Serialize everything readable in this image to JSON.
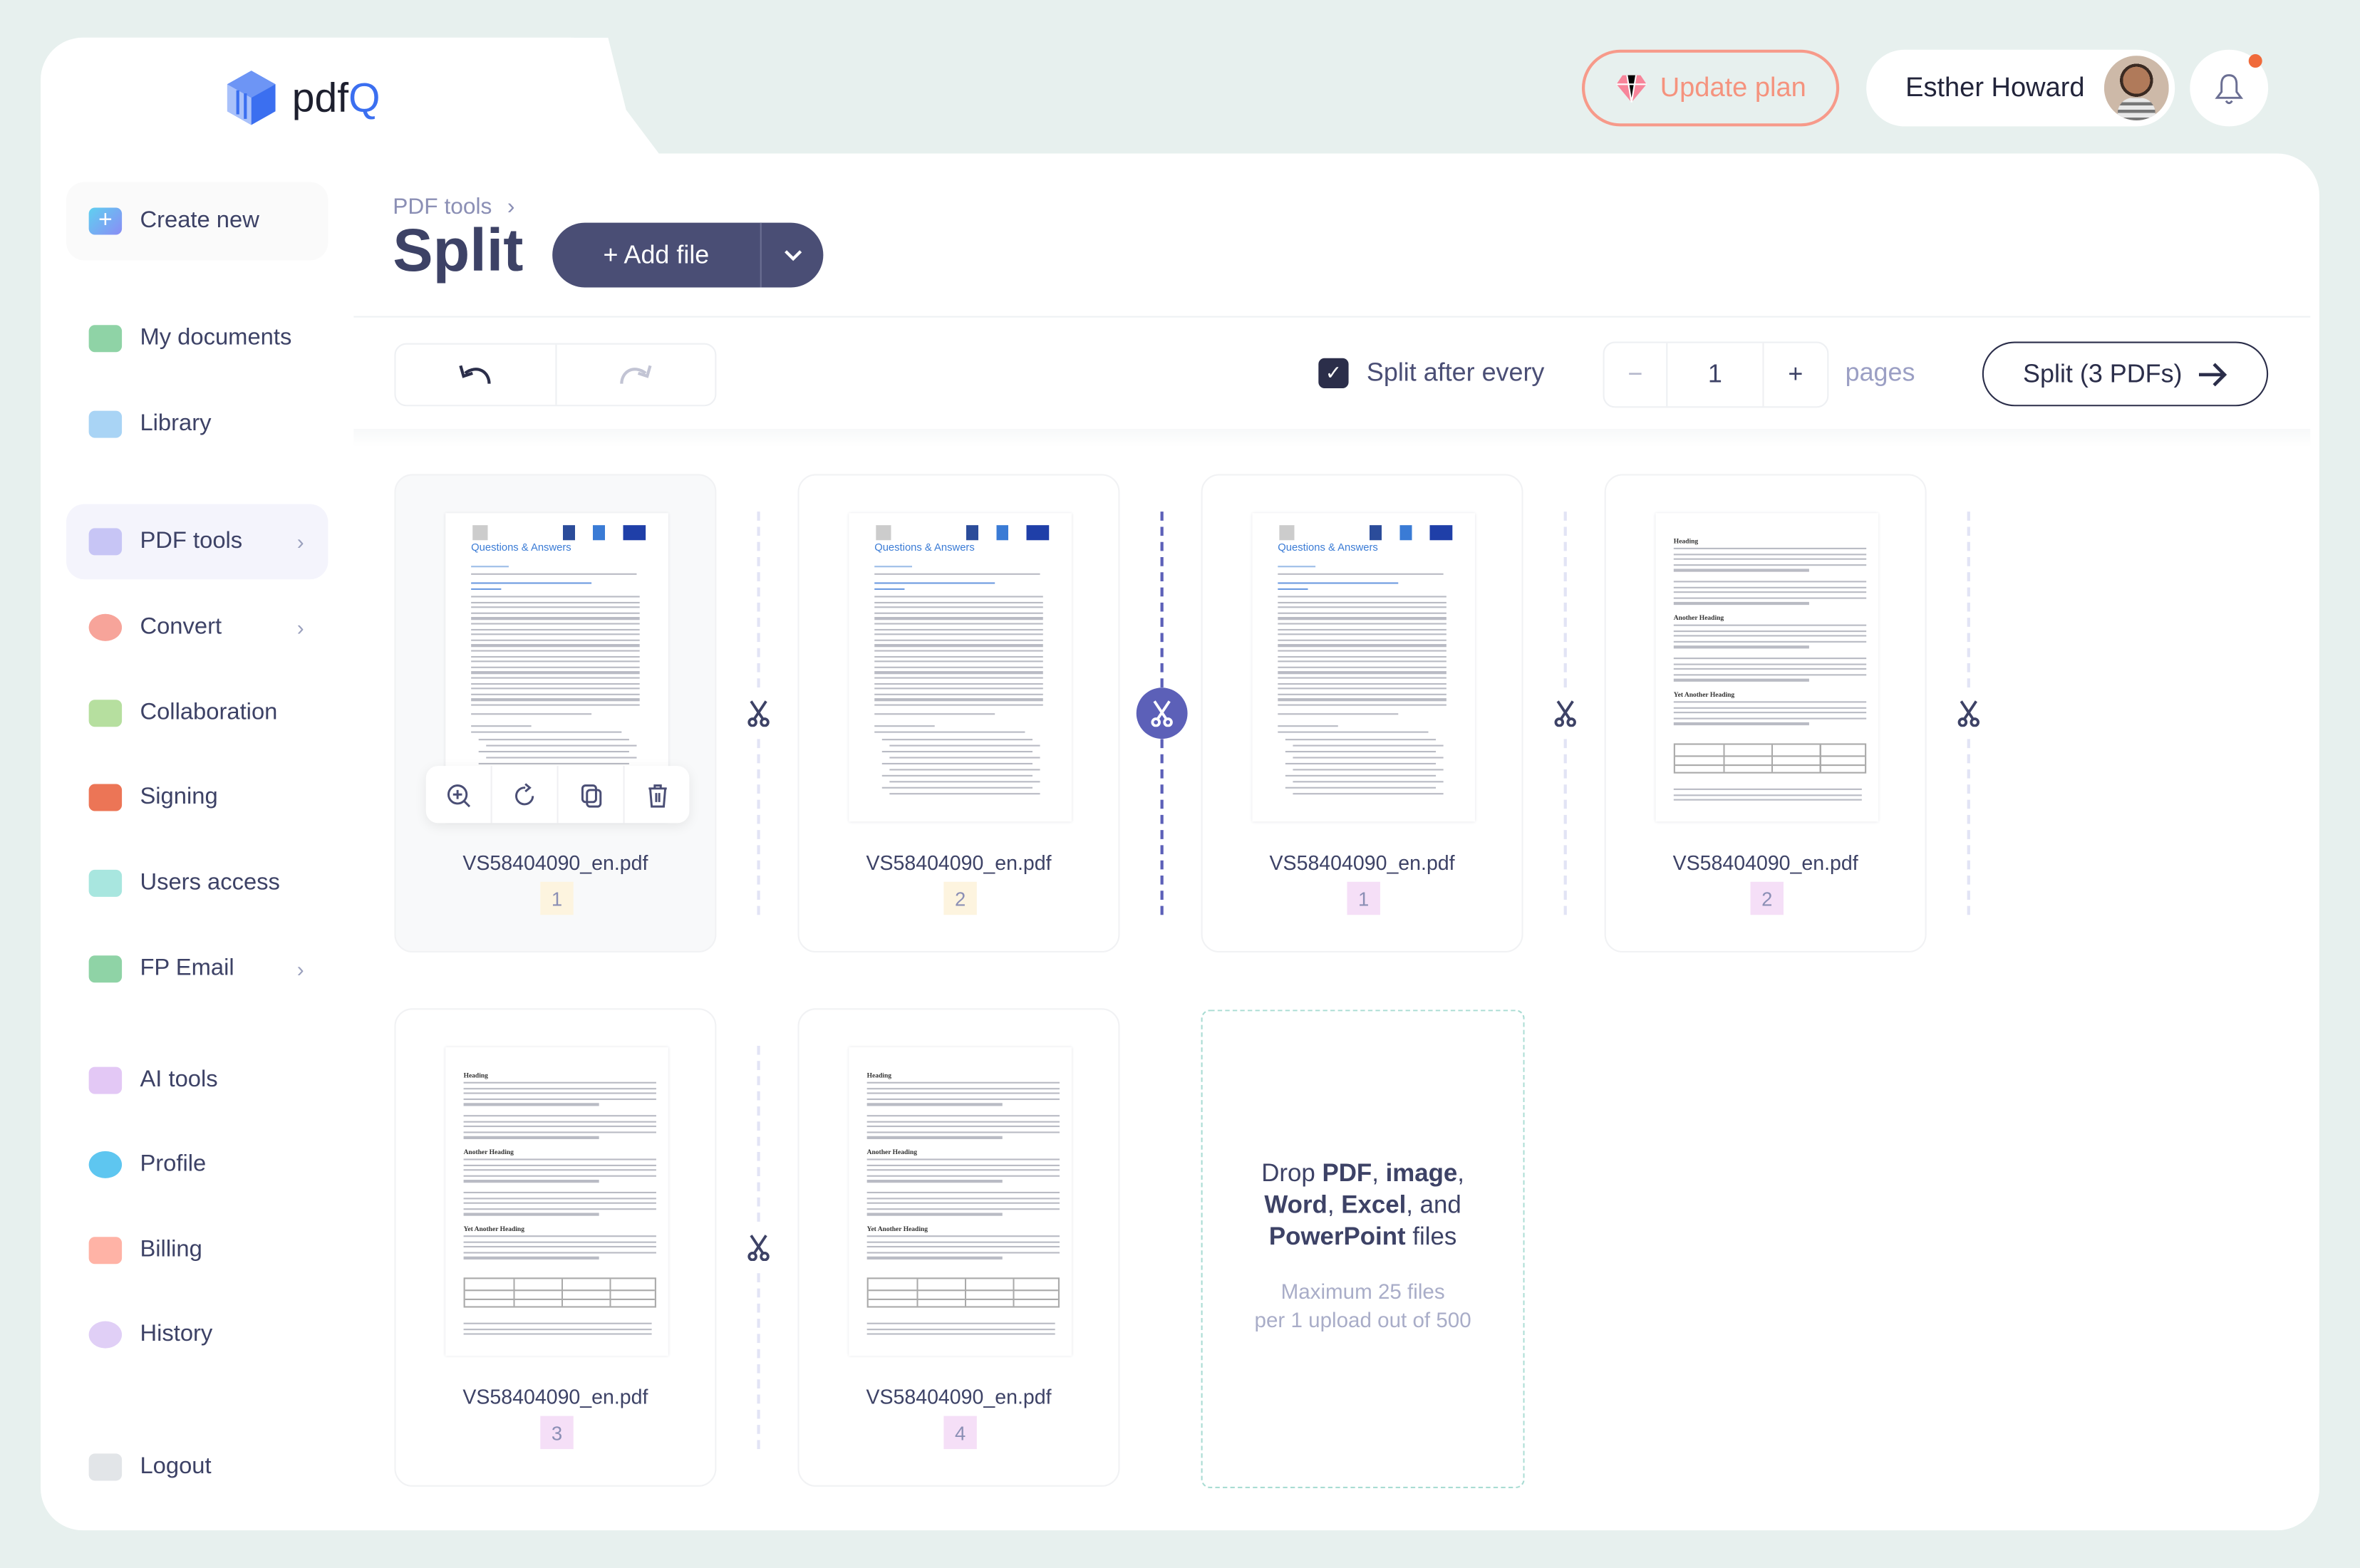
{
  "app": {
    "name_prefix": "pdf",
    "name_suffix": "Q"
  },
  "header": {
    "update_plan": "Update plan",
    "user_name": "Esther Howard",
    "notification_dot": true
  },
  "sidebar": {
    "items": [
      {
        "label": "Create new",
        "icon": "plus-icon",
        "color": "#5fb8f0",
        "chevron": false
      },
      {
        "label": "My documents",
        "icon": "folder-icon",
        "color": "#8fd3a6",
        "chevron": false
      },
      {
        "label": "Library",
        "icon": "library-icon",
        "color": "#a9d4f5",
        "chevron": false
      },
      {
        "label": "PDF tools",
        "icon": "grid-icon",
        "color": "#c7c5f5",
        "chevron": true,
        "active": true
      },
      {
        "label": "Convert",
        "icon": "convert-icon",
        "color": "#f7a49a",
        "chevron": true
      },
      {
        "label": "Collaboration",
        "icon": "people-icon",
        "color": "#b6df9f",
        "chevron": false
      },
      {
        "label": "Signing",
        "icon": "signature-icon",
        "color": "#ec7556",
        "chevron": false
      },
      {
        "label": "Users access",
        "icon": "user-check-icon",
        "color": "#a8e6df",
        "chevron": false
      },
      {
        "label": "FP Email",
        "icon": "email-icon",
        "color": "#8fd3a6",
        "chevron": true
      },
      {
        "label": "AI tools",
        "icon": "ai-icon",
        "color": "#e3c8f5",
        "chevron": false
      },
      {
        "label": "Profile",
        "icon": "profile-icon",
        "color": "#5ec6f0",
        "chevron": false
      },
      {
        "label": "Billing",
        "icon": "card-icon",
        "color": "#ffb3a6",
        "chevron": false
      },
      {
        "label": "History",
        "icon": "clock-icon",
        "color": "#e0cff6",
        "chevron": false
      },
      {
        "label": "Logout",
        "icon": "logout-icon",
        "color": "#e2e5e8",
        "chevron": false
      }
    ]
  },
  "page": {
    "breadcrumb": "PDF tools",
    "title": "Split",
    "add_file": "+ Add file"
  },
  "toolbar": {
    "split_after_label": "Split after every",
    "split_after_checked": true,
    "every_value": "1",
    "minus": "−",
    "plus": "+",
    "unit": "pages",
    "split_button": "Split (3 PDFs)"
  },
  "colors": {
    "accent": "#5c60b8",
    "primary": "#4a4e75",
    "group1_badge": "#fdf4df",
    "group2_badge": "#f5dff7"
  },
  "pages": [
    {
      "file": "VS58404090_en.pdf",
      "page": "1",
      "group": 1,
      "thumb": "qa",
      "selected": true
    },
    {
      "file": "VS58404090_en.pdf",
      "page": "2",
      "group": 1,
      "thumb": "qa"
    },
    {
      "file": "VS58404090_en.pdf",
      "page": "1",
      "group": 2,
      "thumb": "qa"
    },
    {
      "file": "VS58404090_en.pdf",
      "page": "2",
      "group": 2,
      "thumb": "text"
    },
    {
      "file": "VS58404090_en.pdf",
      "page": "3",
      "group": 2,
      "thumb": "text"
    },
    {
      "file": "VS58404090_en.pdf",
      "page": "4",
      "group": 2,
      "thumb": "text"
    }
  ],
  "splits_active": [
    false,
    true,
    false,
    false,
    false
  ],
  "thumb_text": {
    "qa_title": "Questions & Answers",
    "h1": "Heading",
    "h2": "Another Heading",
    "h3": "Yet Another Heading"
  },
  "dropzone": {
    "p1": "Drop ",
    "b1": "PDF",
    "p2": ", ",
    "b2": "image",
    "p3": ", ",
    "b3": "Word",
    "p4": ", ",
    "b4": "Excel",
    "p5": ", and ",
    "b5": "PowerPoint",
    "p6": " files",
    "line1": "Maximum 25 files",
    "line2": "per 1 upload out of 500"
  }
}
